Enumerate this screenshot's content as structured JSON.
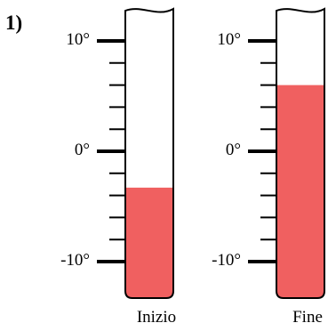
{
  "problem_number": "1)",
  "colors": {
    "liquid": "#f06060",
    "outline": "#000000",
    "background": "#ffffff"
  },
  "thermometers": [
    {
      "caption": "Inizio",
      "scale_labels": [
        "10°",
        "0°",
        "-10°"
      ],
      "reading": -3.3
    },
    {
      "caption": "Fine",
      "scale_labels": [
        "10°",
        "0°",
        "-10°"
      ],
      "reading": 6
    }
  ]
}
